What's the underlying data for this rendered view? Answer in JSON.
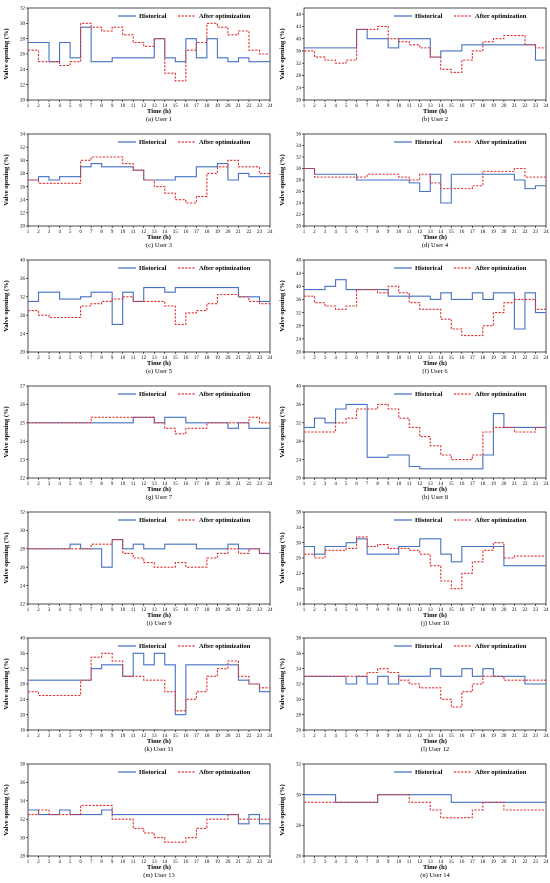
{
  "legend": {
    "historical": "Historical",
    "optimized": "After optimization"
  },
  "colors": {
    "historical": "#4472c4",
    "optimized": "#e03030"
  },
  "chart_data": [
    {
      "type": "line",
      "caption": "(a) User 1",
      "xlabel": "Time (h)",
      "ylabel": "Valve opening (%)",
      "xlim": [
        1,
        24
      ],
      "ylim": [
        20,
        32
      ],
      "yticks": [
        20,
        22,
        24,
        26,
        28,
        30,
        32
      ],
      "series": [
        {
          "name": "Historical",
          "step": true,
          "values": [
            27.5,
            27.5,
            25,
            27.5,
            25.5,
            29.5,
            25,
            25,
            25.5,
            25.5,
            25.5,
            25.5,
            28,
            25.5,
            25,
            28,
            25.5,
            28,
            25.5,
            25,
            25.5,
            25,
            25,
            25
          ]
        },
        {
          "name": "After optimization",
          "step": true,
          "values": [
            26.5,
            25,
            25,
            24.5,
            25,
            30,
            29.5,
            29,
            29.5,
            28.5,
            27.5,
            27,
            28,
            23.5,
            22.5,
            26.5,
            27.5,
            30,
            29.5,
            28.5,
            29,
            26.5,
            26,
            26
          ]
        }
      ]
    },
    {
      "type": "line",
      "caption": "(b) User 2",
      "xlabel": "Time (h)",
      "ylabel": "Valve opening (%)",
      "xlim": [
        1,
        24
      ],
      "ylim": [
        20,
        50
      ],
      "yticks": [
        20,
        24,
        28,
        32,
        36,
        40,
        44,
        48
      ],
      "series": [
        {
          "name": "Historical",
          "step": true,
          "values": [
            37,
            37,
            37,
            37,
            37,
            43,
            40,
            40,
            37,
            40,
            40,
            40,
            34,
            36,
            36,
            38,
            38,
            38,
            38,
            38,
            38,
            38,
            33,
            33
          ]
        },
        {
          "name": "After optimization",
          "step": true,
          "values": [
            36,
            34,
            33,
            32,
            33,
            43,
            43,
            44,
            40,
            39,
            38,
            37,
            34,
            30,
            29,
            33,
            36,
            39,
            40,
            41,
            41,
            38,
            37,
            37
          ]
        }
      ]
    },
    {
      "type": "line",
      "caption": "(c) User 3",
      "xlabel": "Time (h)",
      "ylabel": "Valve opening (%)",
      "xlim": [
        1,
        24
      ],
      "ylim": [
        20,
        34
      ],
      "yticks": [
        20,
        22,
        24,
        26,
        28,
        30,
        32,
        34
      ],
      "series": [
        {
          "name": "Historical",
          "step": true,
          "values": [
            27,
            27.5,
            27,
            27.5,
            27.5,
            29,
            29.5,
            29,
            29,
            29,
            28.5,
            27,
            27,
            27,
            27.5,
            27.5,
            29,
            29,
            29.5,
            27,
            28,
            27.5,
            27.5,
            27
          ]
        },
        {
          "name": "After optimization",
          "step": true,
          "values": [
            27,
            26.5,
            26.5,
            26.5,
            26.5,
            30,
            30.5,
            30.5,
            30.5,
            29.5,
            28.5,
            27,
            26,
            25,
            24,
            23.5,
            24.5,
            28,
            29,
            30,
            29,
            29,
            28,
            27
          ]
        }
      ]
    },
    {
      "type": "line",
      "caption": "(d) User 4",
      "xlabel": "Time (h)",
      "ylabel": "Valve opening (%)",
      "xlim": [
        1,
        24
      ],
      "ylim": [
        20,
        36
      ],
      "yticks": [
        20,
        22,
        24,
        26,
        28,
        30,
        32,
        34,
        36
      ],
      "series": [
        {
          "name": "Historical",
          "step": true,
          "values": [
            30,
            29,
            29,
            29,
            29,
            28,
            28,
            28,
            28,
            28,
            27.5,
            26,
            29,
            24,
            29,
            29,
            29,
            29,
            29,
            29,
            28,
            26.5,
            27,
            27
          ]
        },
        {
          "name": "After optimization",
          "step": true,
          "values": [
            30,
            28.5,
            28.5,
            28.5,
            28.5,
            28.5,
            29,
            29,
            29,
            28.5,
            28,
            29,
            27.5,
            26.5,
            26.5,
            26.5,
            27,
            29.5,
            29.5,
            29.5,
            30,
            28.5,
            28.5,
            28.5
          ]
        }
      ]
    },
    {
      "type": "line",
      "caption": "(e) User 5",
      "xlabel": "Time (h)",
      "ylabel": "Valve opening (%)",
      "xlim": [
        1,
        24
      ],
      "ylim": [
        20,
        40
      ],
      "yticks": [
        20,
        24,
        28,
        32,
        36,
        40
      ],
      "series": [
        {
          "name": "Historical",
          "step": true,
          "values": [
            31,
            33,
            33,
            31.5,
            31.5,
            32,
            33,
            33,
            26,
            33,
            31,
            34,
            34,
            33,
            34,
            34,
            34,
            34,
            34,
            34,
            32,
            32,
            31,
            29
          ]
        },
        {
          "name": "After optimization",
          "step": true,
          "values": [
            29,
            28,
            27.5,
            27.5,
            27.5,
            30,
            30.5,
            31,
            31.5,
            32,
            31,
            31,
            31,
            30,
            26,
            28.5,
            29,
            30.5,
            32.5,
            32.5,
            32,
            31,
            30.5,
            30
          ]
        }
      ]
    },
    {
      "type": "line",
      "caption": "(f) User 6",
      "xlabel": "Time (h)",
      "ylabel": "Valve opening (%)",
      "xlim": [
        1,
        24
      ],
      "ylim": [
        20,
        48
      ],
      "yticks": [
        20,
        24,
        28,
        32,
        36,
        40,
        44,
        48
      ],
      "series": [
        {
          "name": "Historical",
          "step": true,
          "values": [
            39,
            39,
            40,
            42,
            39,
            39,
            39,
            39,
            37,
            37,
            37,
            37,
            36,
            38,
            36,
            36,
            38,
            36,
            38,
            38,
            27,
            38,
            32,
            33
          ]
        },
        {
          "name": "After optimization",
          "step": true,
          "values": [
            37,
            35,
            34,
            33,
            34,
            39,
            39,
            38,
            40,
            38,
            35,
            33,
            33,
            30,
            27,
            25,
            25,
            28,
            32,
            35,
            36,
            36,
            33,
            33
          ]
        }
      ]
    },
    {
      "type": "line",
      "caption": "(g) User 7",
      "xlabel": "Time (h)",
      "ylabel": "Valve opening (%)",
      "xlim": [
        1,
        24
      ],
      "ylim": [
        22,
        27
      ],
      "yticks": [
        22,
        23,
        24,
        25,
        26,
        27
      ],
      "series": [
        {
          "name": "Historical",
          "step": true,
          "values": [
            25,
            25,
            25,
            25,
            25,
            25,
            25,
            25,
            25,
            25,
            25.3,
            25.3,
            25,
            25.3,
            25.3,
            25,
            25,
            25,
            25,
            24.7,
            25,
            24.7,
            24.7,
            24.7
          ]
        },
        {
          "name": "After optimization",
          "step": true,
          "values": [
            25,
            25,
            25,
            25,
            25,
            25,
            25.3,
            25.3,
            25.3,
            25.3,
            25.3,
            25.3,
            25,
            24.7,
            24.4,
            24.7,
            24.7,
            25,
            25,
            25,
            25,
            25.3,
            25,
            25
          ]
        }
      ]
    },
    {
      "type": "line",
      "caption": "(h) User 8",
      "xlabel": "Time (h)",
      "ylabel": "Valve opening (%)",
      "xlim": [
        1,
        24
      ],
      "ylim": [
        20,
        40
      ],
      "yticks": [
        20,
        24,
        28,
        32,
        36,
        40
      ],
      "series": [
        {
          "name": "Historical",
          "step": true,
          "values": [
            31,
            33,
            32,
            35,
            36,
            36,
            24.5,
            24.5,
            25,
            25,
            22.5,
            22,
            22,
            22,
            22,
            22,
            22,
            25,
            34,
            31,
            31,
            31,
            31,
            32
          ]
        },
        {
          "name": "After optimization",
          "step": true,
          "values": [
            30,
            30,
            30,
            32,
            33,
            35,
            35,
            36,
            35,
            33,
            31,
            29,
            27,
            25,
            24,
            24,
            25,
            30,
            31,
            31,
            30,
            30,
            31,
            31
          ]
        }
      ]
    },
    {
      "type": "line",
      "caption": "(i) User 9",
      "xlabel": "Time (h)",
      "ylabel": "Valve opening (%)",
      "xlim": [
        1,
        24
      ],
      "ylim": [
        22,
        32
      ],
      "yticks": [
        22,
        24,
        26,
        28,
        30,
        32
      ],
      "series": [
        {
          "name": "Historical",
          "step": true,
          "values": [
            28,
            28,
            28,
            28,
            28.5,
            28,
            28,
            26,
            29,
            28,
            28.5,
            28,
            28,
            28.5,
            28.5,
            28.5,
            28,
            28,
            28,
            28.5,
            28,
            28,
            27.5,
            28
          ]
        },
        {
          "name": "After optimization",
          "step": true,
          "values": [
            28,
            28,
            28,
            28,
            28,
            28,
            28.5,
            28.5,
            29,
            27.5,
            27,
            26.5,
            26,
            26,
            26.5,
            26,
            26,
            27,
            27.5,
            28,
            27.5,
            28,
            27.5,
            27.5
          ]
        }
      ]
    },
    {
      "type": "line",
      "caption": "(j) User 10",
      "xlabel": "Time (h)",
      "ylabel": "Valve opening (%)",
      "xlim": [
        1,
        24
      ],
      "ylim": [
        14,
        38
      ],
      "yticks": [
        14,
        18,
        22,
        26,
        30,
        34,
        38
      ],
      "series": [
        {
          "name": "Historical",
          "step": true,
          "values": [
            29,
            27,
            29,
            29,
            30,
            31,
            27,
            27,
            27,
            29,
            29,
            31,
            31,
            27,
            25,
            29,
            29,
            29,
            29,
            24,
            24,
            24,
            24,
            24
          ]
        },
        {
          "name": "After optimization",
          "step": true,
          "values": [
            27,
            26,
            28,
            28,
            28.5,
            31.5,
            29,
            29.5,
            28.5,
            28.5,
            28,
            27,
            24,
            20,
            18,
            22,
            25,
            28,
            30,
            26,
            26.5,
            26.5,
            26.5,
            26.5
          ]
        }
      ]
    },
    {
      "type": "line",
      "caption": "(k) User 11",
      "xlabel": "Time (h)",
      "ylabel": "Valve opening (%)",
      "xlim": [
        1,
        24
      ],
      "ylim": [
        16,
        40
      ],
      "yticks": [
        16,
        20,
        24,
        28,
        32,
        36,
        40
      ],
      "series": [
        {
          "name": "Historical",
          "step": true,
          "values": [
            29,
            29,
            29,
            29,
            29,
            29,
            32,
            33,
            33,
            30,
            36,
            33,
            36,
            33,
            20,
            33,
            33,
            33,
            33,
            33,
            29,
            28,
            26,
            26
          ]
        },
        {
          "name": "After optimization",
          "step": true,
          "values": [
            26,
            25,
            25,
            25,
            25,
            29,
            35,
            36,
            34,
            30,
            30,
            29,
            29,
            26,
            21,
            24,
            26,
            30,
            32,
            34,
            30,
            28,
            27,
            27
          ]
        }
      ]
    },
    {
      "type": "line",
      "caption": "(l) User 12",
      "xlabel": "Time (h)",
      "ylabel": "Valve opening (%)",
      "xlim": [
        1,
        24
      ],
      "ylim": [
        26,
        38
      ],
      "yticks": [
        26,
        28,
        30,
        32,
        34,
        36,
        38
      ],
      "series": [
        {
          "name": "Historical",
          "step": true,
          "values": [
            33,
            33,
            33,
            33,
            32,
            33,
            32,
            33,
            32,
            33,
            33,
            33,
            34,
            33,
            33,
            34,
            33,
            34,
            33,
            33,
            33,
            32,
            32,
            32
          ]
        },
        {
          "name": "After optimization",
          "step": true,
          "values": [
            33,
            33,
            33,
            33,
            33,
            33,
            33.5,
            34,
            33.5,
            32.5,
            32,
            31.5,
            31.5,
            30,
            29,
            31,
            32,
            33,
            33,
            32.5,
            32.5,
            32.5,
            32.5,
            32.5
          ]
        }
      ]
    },
    {
      "type": "line",
      "caption": "(m) User 13",
      "xlabel": "Time (h)",
      "ylabel": "Valve opening (%)",
      "xlim": [
        1,
        24
      ],
      "ylim": [
        28,
        38
      ],
      "yticks": [
        28,
        30,
        32,
        34,
        36,
        38
      ],
      "series": [
        {
          "name": "Historical",
          "step": true,
          "values": [
            33,
            32.5,
            32.5,
            33,
            32.5,
            32.5,
            32.5,
            33,
            32.5,
            32.5,
            32.5,
            32.5,
            32.5,
            32.5,
            32.5,
            32.5,
            32.5,
            32.5,
            32.5,
            32.5,
            31.5,
            32.5,
            31.5,
            31.5
          ]
        },
        {
          "name": "After optimization",
          "step": true,
          "values": [
            32.5,
            33,
            32.5,
            32.5,
            32.5,
            33.5,
            33.5,
            33.5,
            32,
            32,
            31,
            30.5,
            30,
            29.5,
            29.5,
            30,
            31,
            32,
            32,
            32.5,
            32,
            32,
            32,
            32
          ]
        }
      ]
    },
    {
      "type": "line",
      "caption": "(n) User 14",
      "xlabel": "Time (h)",
      "ylabel": "Valve opening (%)",
      "xlim": [
        1,
        24
      ],
      "ylim": [
        26,
        32
      ],
      "yticks": [
        26,
        28,
        30,
        32
      ],
      "series": [
        {
          "name": "Historical",
          "step": true,
          "values": [
            30,
            30,
            30,
            29.5,
            29.5,
            29.5,
            29.5,
            30,
            30,
            30,
            30,
            30,
            30,
            30,
            29.5,
            29.5,
            29.5,
            29.5,
            29.5,
            29.5,
            29.5,
            29.5,
            29.5,
            29.5
          ]
        },
        {
          "name": "After optimization",
          "step": true,
          "values": [
            29.5,
            29.5,
            29.5,
            29.5,
            29.5,
            29.5,
            29.5,
            30,
            30,
            30,
            29.5,
            29.5,
            29,
            28.5,
            28.5,
            28.5,
            29,
            29.5,
            29.5,
            29,
            29,
            29,
            29,
            29
          ]
        }
      ]
    }
  ]
}
